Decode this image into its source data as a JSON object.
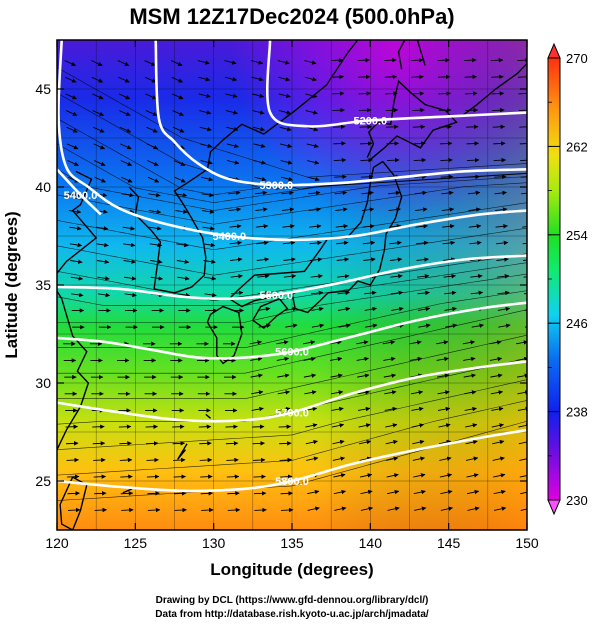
{
  "title": "MSM 12Z17Dec2024 (500.0hPa)",
  "chart_data": {
    "type": "heatmap",
    "xlabel": "Longitude (degrees)",
    "ylabel": "Latitude  (degrees)",
    "xlim": [
      120,
      150
    ],
    "ylim": [
      22.5,
      47.5
    ],
    "x_ticks": [
      "120",
      "125",
      "130",
      "135",
      "140",
      "145",
      "150"
    ],
    "y_ticks": [
      "25",
      "30",
      "35",
      "40",
      "45"
    ],
    "grid": true,
    "colorbar": {
      "range": [
        230,
        270
      ],
      "ticks": [
        "270",
        "262",
        "254",
        "246",
        "238",
        "230"
      ],
      "placement": "right"
    },
    "contours": [
      {
        "label": "5200.0",
        "points": [
          [
            133.6,
            47.5
          ],
          [
            133.6,
            43.8
          ],
          [
            136,
            43.1
          ],
          [
            140,
            43.4
          ],
          [
            145,
            43.6
          ],
          [
            150,
            43.8
          ]
        ]
      },
      {
        "label": "5300.0",
        "points": [
          [
            126.3,
            47.5
          ],
          [
            126.5,
            43.5
          ],
          [
            127.5,
            42.3
          ],
          [
            129,
            41.2
          ],
          [
            131,
            40.4
          ],
          [
            134,
            40.1
          ],
          [
            138,
            40.2
          ],
          [
            142,
            40.5
          ],
          [
            146,
            40.8
          ],
          [
            150,
            40.9
          ]
        ]
      },
      {
        "label": "5400.0",
        "points": [
          [
            120.3,
            47.5
          ],
          [
            120.1,
            43.5
          ],
          [
            120.6,
            41.0
          ],
          [
            122,
            40.0
          ],
          [
            124,
            38.9
          ],
          [
            127,
            38.1
          ],
          [
            131,
            37.5
          ],
          [
            135,
            37.3
          ],
          [
            139,
            37.5
          ],
          [
            143,
            38.1
          ],
          [
            147,
            38.6
          ],
          [
            150,
            38.8
          ]
        ]
      },
      {
        "label": "5400.0",
        "points": [
          [
            120,
            40.9
          ],
          [
            121.5,
            39.6
          ],
          [
            122.8,
            38.6
          ]
        ]
      },
      {
        "label": "5500.0",
        "points": [
          [
            120,
            34.9
          ],
          [
            124,
            34.8
          ],
          [
            128,
            34.4
          ],
          [
            131,
            34.3
          ],
          [
            134,
            34.5
          ],
          [
            138,
            35.1
          ],
          [
            142,
            35.8
          ],
          [
            146,
            36.3
          ],
          [
            150,
            36.5
          ]
        ]
      },
      {
        "label": "5600.0",
        "points": [
          [
            120,
            32.3
          ],
          [
            123,
            32.1
          ],
          [
            126,
            31.7
          ],
          [
            129,
            31.3
          ],
          [
            132,
            31.3
          ],
          [
            135,
            31.6
          ],
          [
            139,
            32.4
          ],
          [
            143,
            33.2
          ],
          [
            147,
            33.8
          ],
          [
            150,
            34.1
          ]
        ]
      },
      {
        "label": "5700.0",
        "points": [
          [
            120,
            29.0
          ],
          [
            124,
            28.5
          ],
          [
            128,
            28.1
          ],
          [
            132,
            28.1
          ],
          [
            135,
            28.5
          ],
          [
            139,
            29.5
          ],
          [
            143,
            30.3
          ],
          [
            147,
            30.8
          ],
          [
            150,
            31.1
          ]
        ]
      },
      {
        "label": "5800.0",
        "points": [
          [
            120,
            25.0
          ],
          [
            124,
            24.7
          ],
          [
            128,
            24.5
          ],
          [
            132,
            24.6
          ],
          [
            135,
            25.0
          ],
          [
            139,
            25.9
          ],
          [
            143,
            26.6
          ],
          [
            147,
            27.2
          ],
          [
            150,
            27.6
          ]
        ]
      }
    ],
    "annotations": [
      "Drawing by DCL (https://www.gfd-dennou.org/library/dcl/)",
      "Data from http://database.rish.kyoto-u.ac.jp/arch/jmadata/"
    ]
  },
  "colors": {
    "frame": "#000000",
    "contour": "#ffffff",
    "coast": "#000000",
    "grid": "#000000",
    "stream": "#000000"
  }
}
